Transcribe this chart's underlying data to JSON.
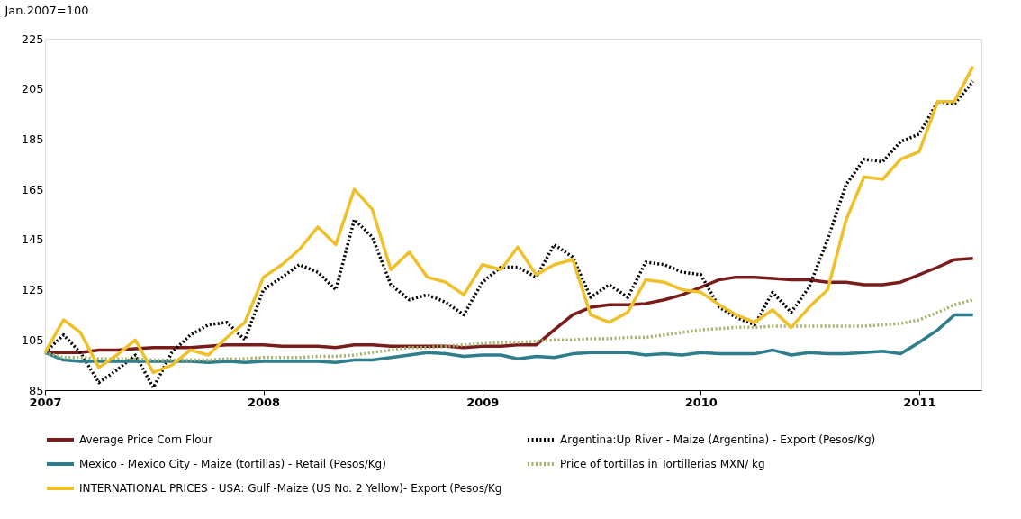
{
  "chart_data": {
    "type": "line",
    "ylabel": "Jan.2007=100",
    "x": [
      "2007-01",
      "2007-02",
      "2007-03",
      "2007-04",
      "2007-05",
      "2007-06",
      "2007-07",
      "2007-08",
      "2007-09",
      "2007-10",
      "2007-11",
      "2007-12",
      "2008-01",
      "2008-02",
      "2008-03",
      "2008-04",
      "2008-05",
      "2008-06",
      "2008-07",
      "2008-08",
      "2008-09",
      "2008-10",
      "2008-11",
      "2008-12",
      "2009-01",
      "2009-02",
      "2009-03",
      "2009-04",
      "2009-05",
      "2009-06",
      "2009-07",
      "2009-08",
      "2009-09",
      "2009-10",
      "2009-11",
      "2009-12",
      "2010-01",
      "2010-02",
      "2010-03",
      "2010-04",
      "2010-05",
      "2010-06",
      "2010-07",
      "2010-08",
      "2010-09",
      "2010-10",
      "2010-11",
      "2010-12",
      "2011-01",
      "2011-02",
      "2011-03",
      "2011-04"
    ],
    "series": [
      {
        "name": "Average Price Corn Flour",
        "color": "#7b1c1c",
        "line_style": "solid",
        "values": [
          100,
          100,
          100,
          101,
          101,
          101.5,
          102,
          102,
          102,
          102.5,
          103,
          103,
          103,
          102.5,
          102.5,
          102.5,
          102,
          103,
          103,
          102.5,
          102.5,
          102.5,
          102.5,
          102,
          102.5,
          102.5,
          103,
          103,
          109,
          115,
          118,
          119,
          119,
          119.5,
          121,
          123,
          126,
          129,
          130,
          130,
          129.5,
          129,
          129,
          128,
          128,
          127,
          127,
          128,
          131,
          134,
          137,
          137.5
        ]
      },
      {
        "name": "Argentina:Up River - Maize (Argentina) - Export (Pesos/Kg)",
        "color": "#000000",
        "line_style": "dotted",
        "values": [
          100,
          107,
          100,
          88,
          93,
          99,
          86,
          100,
          107,
          111,
          112,
          105,
          125,
          130,
          135,
          132,
          125,
          153,
          146,
          127,
          121,
          123,
          120,
          115,
          128,
          134,
          134,
          130,
          143,
          138,
          122,
          127,
          122,
          136,
          135,
          132,
          131,
          118,
          114,
          111,
          124,
          116,
          126,
          145,
          167,
          177,
          176,
          184,
          187,
          200,
          199,
          208
        ]
      },
      {
        "name": "Mexico - Mexico City - Maize (tortillas) - Retail (Pesos/Kg)",
        "color": "#2e7d8c",
        "line_style": "solid",
        "values": [
          100,
          97,
          96.5,
          96.5,
          96.5,
          96.5,
          96.5,
          96.5,
          96.5,
          96,
          96.5,
          96,
          96.5,
          96.5,
          96.5,
          96.5,
          96,
          97,
          97,
          98,
          99,
          100,
          99.5,
          98.5,
          99,
          99,
          97.5,
          98.5,
          98,
          99.5,
          100,
          100,
          100,
          99,
          99.5,
          99,
          100,
          99.5,
          99.5,
          99.5,
          101,
          99,
          100,
          99.5,
          99.5,
          100,
          100.5,
          99.5,
          104,
          109,
          115,
          115
        ]
      },
      {
        "name": "Price of tortillas in Tortillerias  MXN/ kg",
        "color": "#a3b06a",
        "line_style": "dotted",
        "values": [
          100,
          98,
          98,
          97.5,
          97.5,
          97.5,
          97,
          97,
          97,
          97,
          97.5,
          97.5,
          98,
          98,
          98,
          98.5,
          98.5,
          99,
          100,
          101,
          102,
          102,
          102.5,
          103,
          103.5,
          104,
          104,
          104.5,
          105,
          105,
          105.5,
          105.5,
          106,
          106,
          107,
          108,
          109,
          109.5,
          110,
          110,
          110.5,
          110.5,
          110.5,
          110.5,
          110.5,
          110.5,
          111,
          111.5,
          113,
          116,
          119,
          121
        ]
      },
      {
        "name": "INTERNATIONAL PRICES - USA: Gulf -Maize (US No. 2 Yellow)- Export (Pesos/Kg",
        "color": "#f0c02a",
        "line_style": "solid",
        "values": [
          100,
          113,
          108,
          94,
          99,
          105,
          92,
          95,
          101,
          99,
          106,
          112,
          130,
          135,
          141,
          150,
          143,
          165,
          157,
          133,
          140,
          130,
          128,
          123,
          135,
          133,
          142,
          131,
          135,
          137,
          115,
          112,
          116,
          129,
          128,
          125,
          124,
          119,
          115,
          112,
          117,
          110,
          118,
          125,
          153,
          170,
          169,
          177,
          180,
          200,
          200,
          214
        ]
      }
    ],
    "xlim": [
      "2007-01",
      "2011-04-15"
    ],
    "xticks": [
      {
        "value": "2007-01",
        "label": "2007"
      },
      {
        "value": "2008-01",
        "label": "2008"
      },
      {
        "value": "2009-01",
        "label": "2009"
      },
      {
        "value": "2010-01",
        "label": "2010"
      },
      {
        "value": "2011-01",
        "label": "2011"
      }
    ],
    "ylim": [
      85,
      225
    ],
    "yticks": [
      85,
      105,
      125,
      145,
      165,
      185,
      205,
      225
    ],
    "grid": false,
    "legend": "bottom",
    "marker": "none"
  }
}
